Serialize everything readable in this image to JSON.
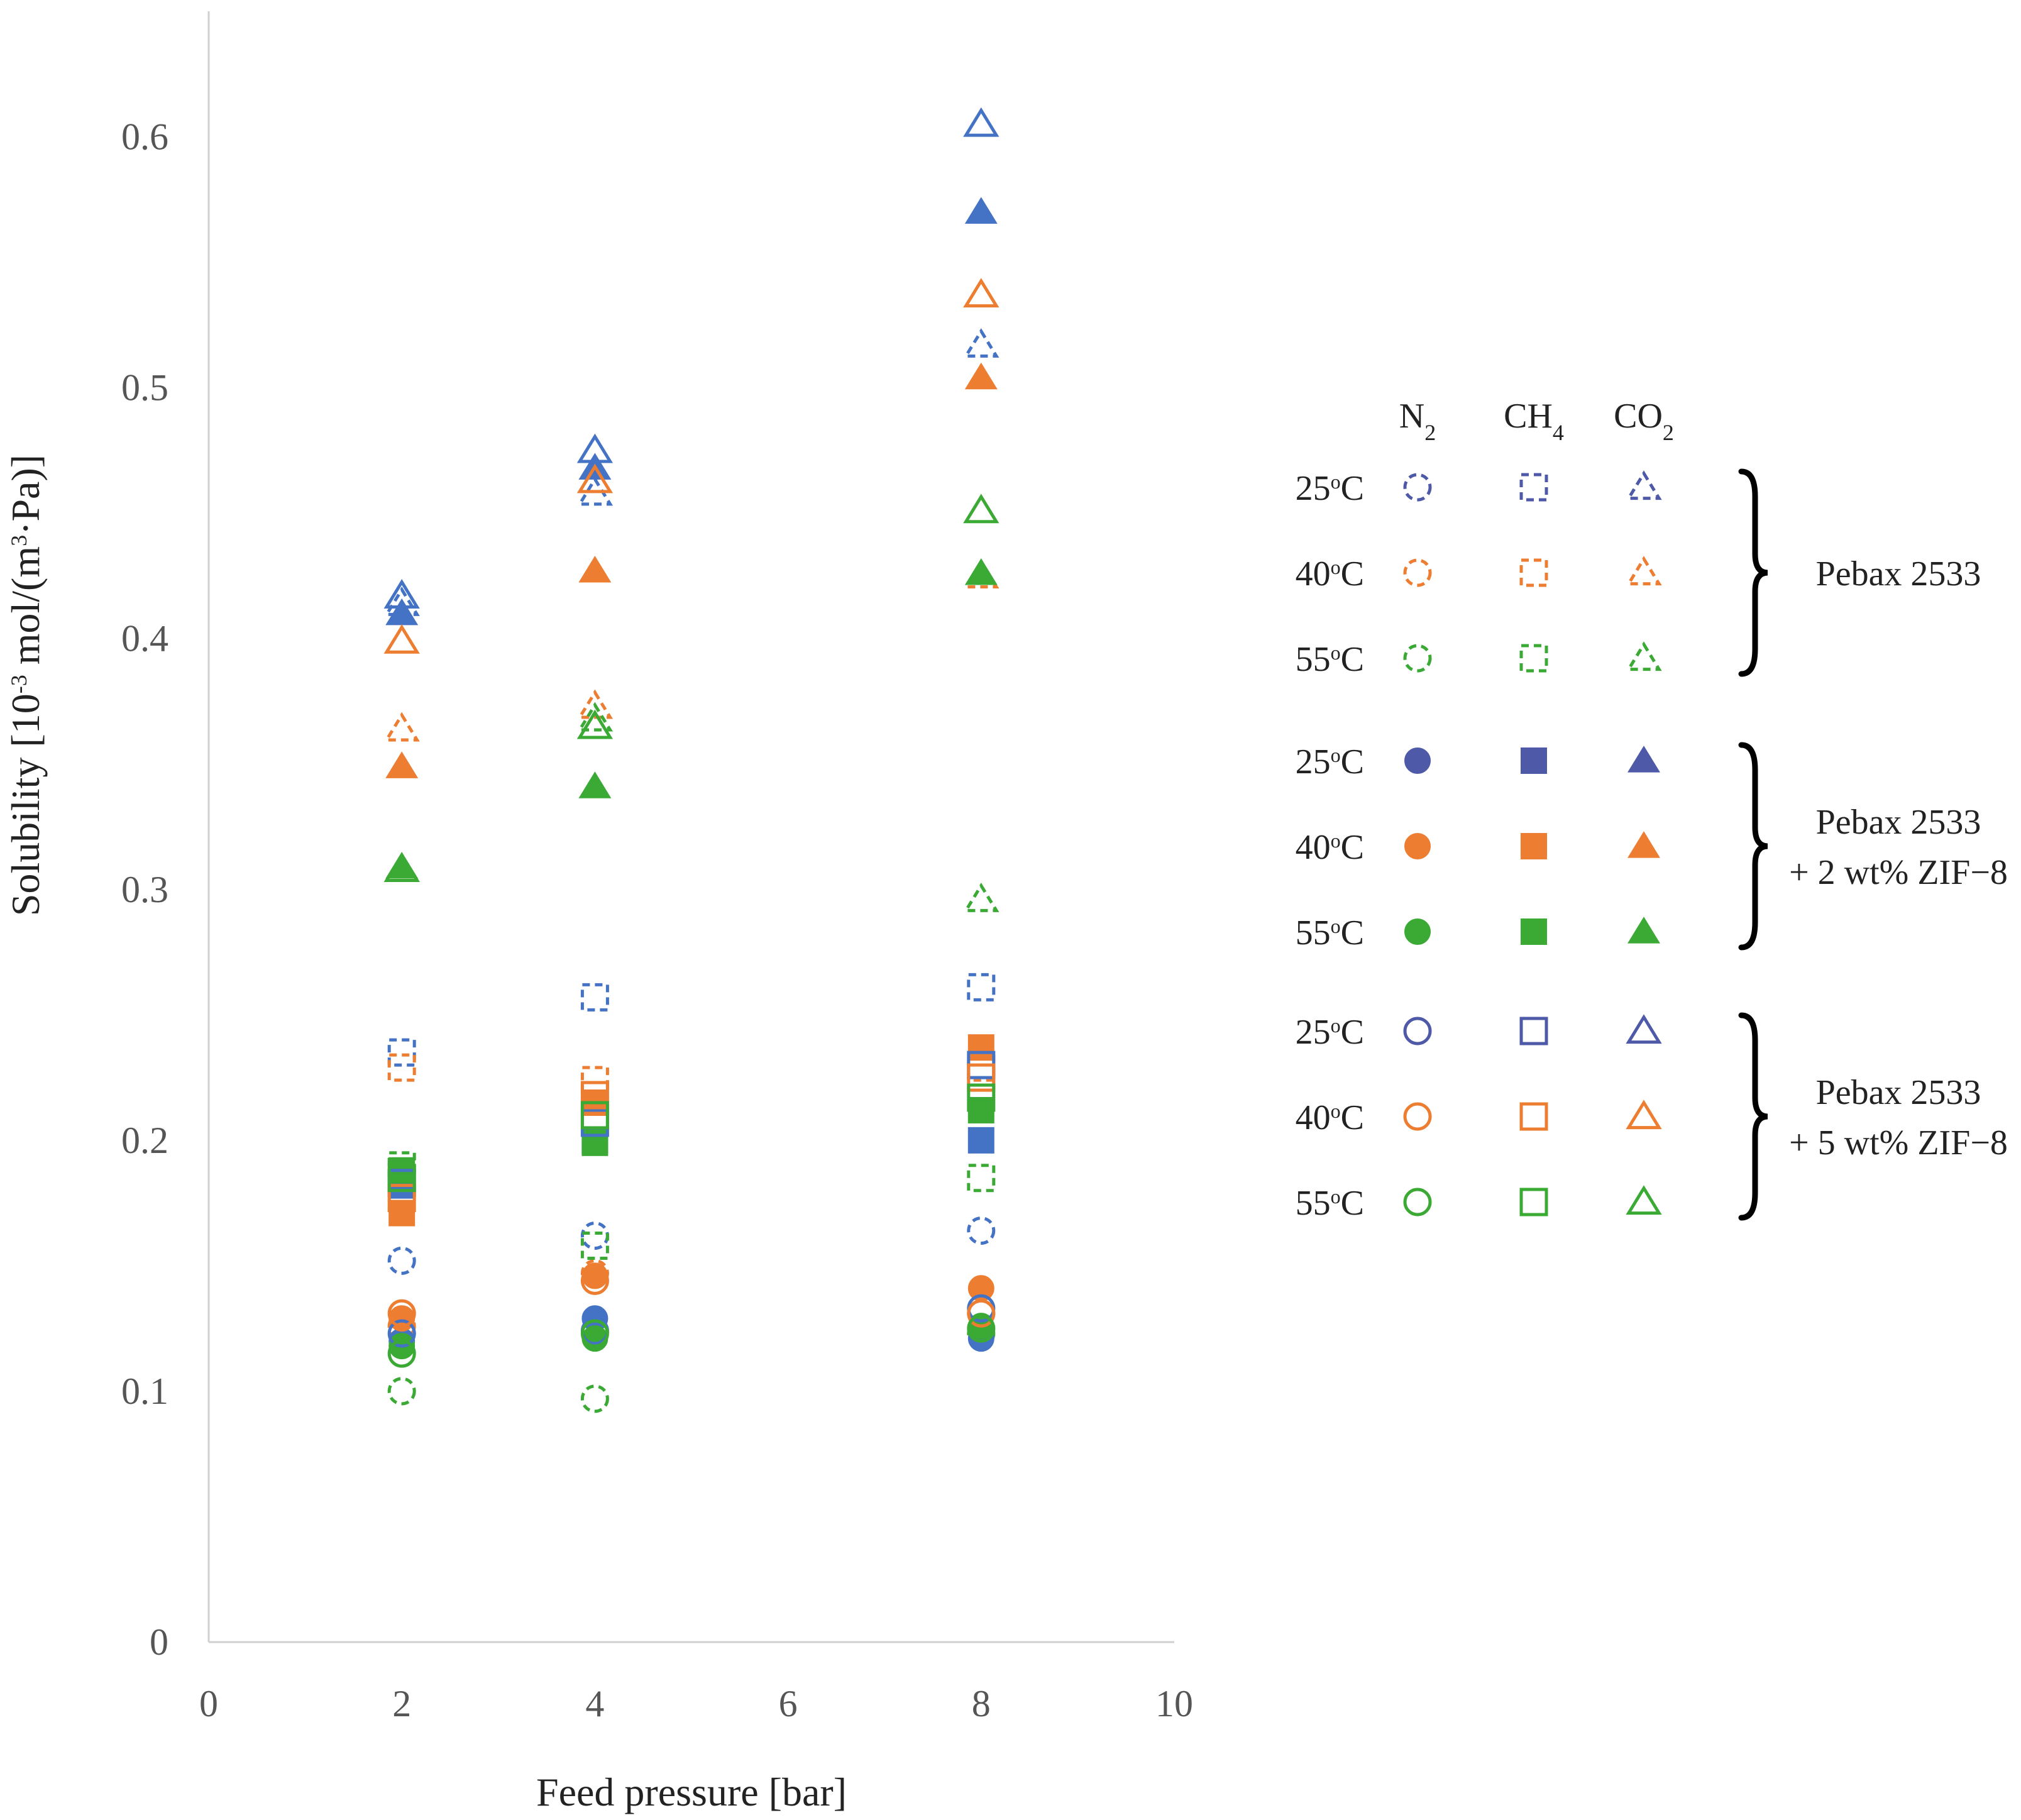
{
  "chart_data": {
    "type": "scatter",
    "xlabel": "Feed pressure [bar]",
    "ylabel_parts": [
      "Solubility [10",
      "-3",
      " mol/(m",
      "3",
      "·Pa)]"
    ],
    "xlim": [
      0,
      10
    ],
    "ylim": [
      0,
      0.65
    ],
    "xticks": [
      "0",
      "2",
      "4",
      "6",
      "8",
      "10"
    ],
    "xtick_values": [
      0,
      2,
      4,
      6,
      8,
      10
    ],
    "yticks": [
      "0",
      "0.1",
      "0.2",
      "0.3",
      "0.4",
      "0.5",
      "0.6"
    ],
    "ytick_values": [
      0,
      0.1,
      0.2,
      0.3,
      0.4,
      0.5,
      0.6
    ],
    "colors": {
      "25": "#4472C4",
      "40": "#ED7D31",
      "55": "#3BAA35",
      "legend25": "#4E5AA8",
      "axis": "#D0D0D0",
      "text": "#222222",
      "brace": "#000000"
    },
    "series": [
      {
        "name": "N2 25°C Pebax 2533",
        "gas": "N2",
        "temp": "25",
        "material": "Pebax 2533",
        "style": "dashed",
        "x": [
          2,
          4,
          8
        ],
        "y": [
          0.152,
          0.162,
          0.164
        ]
      },
      {
        "name": "N2 40°C Pebax 2533",
        "gas": "N2",
        "temp": "40",
        "material": "Pebax 2533",
        "style": "dashed",
        "x": [
          2,
          4,
          8
        ],
        "y": [
          0.126,
          0.147,
          0.131
        ]
      },
      {
        "name": "N2 55°C Pebax 2533",
        "gas": "N2",
        "temp": "55",
        "material": "Pebax 2533",
        "style": "dashed",
        "x": [
          2,
          4,
          8
        ],
        "y": [
          0.1,
          0.097,
          0.123
        ]
      },
      {
        "name": "CH4 25°C Pebax 2533",
        "gas": "CH4",
        "temp": "25",
        "material": "Pebax 2533",
        "style": "dashed",
        "x": [
          2,
          4,
          8
        ],
        "y": [
          0.235,
          0.257,
          0.261
        ]
      },
      {
        "name": "CH4 40°C Pebax 2533",
        "gas": "CH4",
        "temp": "40",
        "material": "Pebax 2533",
        "style": "dashed",
        "x": [
          2,
          4,
          8
        ],
        "y": [
          0.229,
          0.224,
          0.229
        ]
      },
      {
        "name": "CH4 55°C Pebax 2533",
        "gas": "CH4",
        "temp": "55",
        "material": "Pebax 2533",
        "style": "dashed",
        "x": [
          2,
          4,
          8
        ],
        "y": [
          0.19,
          0.158,
          0.185
        ]
      },
      {
        "name": "CO2 25°C Pebax 2533",
        "gas": "CO2",
        "temp": "25",
        "material": "Pebax 2533",
        "style": "dashed",
        "x": [
          2,
          4,
          8
        ],
        "y": [
          0.414,
          0.458,
          0.517
        ]
      },
      {
        "name": "CO2 40°C Pebax 2533",
        "gas": "CO2",
        "temp": "40",
        "material": "Pebax 2533",
        "style": "dashed",
        "x": [
          2,
          4,
          8
        ],
        "y": [
          0.364,
          0.373,
          0.425
        ]
      },
      {
        "name": "CO2 55°C Pebax 2533",
        "gas": "CO2",
        "temp": "55",
        "material": "Pebax 2533",
        "style": "dashed",
        "x": [
          2,
          4,
          8
        ],
        "y": [
          0.308,
          0.368,
          0.296
        ]
      },
      {
        "name": "N2 25°C Pebax 2533 + 2 wt% ZIF-8",
        "gas": "N2",
        "temp": "25",
        "material": "Pebax 2533 + 2 wt% ZIF-8",
        "style": "filled",
        "x": [
          2,
          4,
          8
        ],
        "y": [
          0.12,
          0.129,
          0.121
        ]
      },
      {
        "name": "N2 40°C Pebax 2533 + 2 wt% ZIF-8",
        "gas": "N2",
        "temp": "40",
        "material": "Pebax 2533 + 2 wt% ZIF-8",
        "style": "filled",
        "x": [
          2,
          4,
          8
        ],
        "y": [
          0.129,
          0.146,
          0.141
        ]
      },
      {
        "name": "N2 55°C Pebax 2533 + 2 wt% ZIF-8",
        "gas": "N2",
        "temp": "55",
        "material": "Pebax 2533 + 2 wt% ZIF-8",
        "style": "filled",
        "x": [
          2,
          4,
          8
        ],
        "y": [
          0.118,
          0.121,
          0.126
        ]
      },
      {
        "name": "CH4 25°C Pebax 2533 + 2 wt% ZIF-8",
        "gas": "CH4",
        "temp": "25",
        "material": "Pebax 2533 + 2 wt% ZIF-8",
        "style": "filled",
        "x": [
          2,
          4,
          8
        ],
        "y": [
          0.182,
          0.2,
          0.2
        ]
      },
      {
        "name": "CH4 40°C Pebax 2533 + 2 wt% ZIF-8",
        "gas": "CH4",
        "temp": "40",
        "material": "Pebax 2533 + 2 wt% ZIF-8",
        "style": "filled",
        "x": [
          2,
          4,
          8
        ],
        "y": [
          0.171,
          0.215,
          0.237
        ]
      },
      {
        "name": "CH4 55°C Pebax 2533 + 2 wt% ZIF-8",
        "gas": "CH4",
        "temp": "55",
        "material": "Pebax 2533 + 2 wt% ZIF-8",
        "style": "filled",
        "x": [
          2,
          4,
          8
        ],
        "y": [
          0.188,
          0.199,
          0.212
        ]
      },
      {
        "name": "CO2 25°C Pebax 2533 + 2 wt% ZIF-8",
        "gas": "CO2",
        "temp": "25",
        "material": "Pebax 2533 + 2 wt% ZIF-8",
        "style": "filled",
        "x": [
          2,
          4,
          8
        ],
        "y": [
          0.41,
          0.468,
          0.57
        ]
      },
      {
        "name": "CO2 40°C Pebax 2533 + 2 wt% ZIF-8",
        "gas": "CO2",
        "temp": "40",
        "material": "Pebax 2533 + 2 wt% ZIF-8",
        "style": "filled",
        "x": [
          2,
          4,
          8
        ],
        "y": [
          0.349,
          0.427,
          0.504
        ]
      },
      {
        "name": "CO2 55°C Pebax 2533 + 2 wt% ZIF-8",
        "gas": "CO2",
        "temp": "55",
        "material": "Pebax 2533 + 2 wt% ZIF-8",
        "style": "filled",
        "x": [
          2,
          4,
          8
        ],
        "y": [
          0.309,
          0.341,
          0.426
        ]
      },
      {
        "name": "N2 25°C Pebax 2533 + 5 wt% ZIF-8",
        "gas": "N2",
        "temp": "25",
        "material": "Pebax 2533 + 5 wt% ZIF-8",
        "style": "hollow",
        "x": [
          2,
          4,
          8
        ],
        "y": [
          0.123,
          0.124,
          0.133
        ]
      },
      {
        "name": "N2 40°C Pebax 2533 + 5 wt% ZIF-8",
        "gas": "N2",
        "temp": "40",
        "material": "Pebax 2533 + 5 wt% ZIF-8",
        "style": "hollow",
        "x": [
          2,
          4,
          8
        ],
        "y": [
          0.131,
          0.144,
          0.131
        ]
      },
      {
        "name": "N2 55°C Pebax 2533 + 5 wt% ZIF-8",
        "gas": "N2",
        "temp": "55",
        "material": "Pebax 2533 + 5 wt% ZIF-8",
        "style": "hollow",
        "x": [
          2,
          4,
          8
        ],
        "y": [
          0.115,
          0.123,
          0.125
        ]
      },
      {
        "name": "CH4 25°C Pebax 2533 + 5 wt% ZIF-8",
        "gas": "CH4",
        "temp": "25",
        "material": "Pebax 2533 + 5 wt% ZIF-8",
        "style": "hollow",
        "x": [
          2,
          4,
          8
        ],
        "y": [
          0.183,
          0.207,
          0.23
        ]
      },
      {
        "name": "CH4 40°C Pebax 2533 + 5 wt% ZIF-8",
        "gas": "CH4",
        "temp": "40",
        "material": "Pebax 2533 + 5 wt% ZIF-8",
        "style": "hollow",
        "x": [
          2,
          4,
          8
        ],
        "y": [
          0.177,
          0.218,
          0.225
        ]
      },
      {
        "name": "CH4 55°C Pebax 2533 + 5 wt% ZIF-8",
        "gas": "CH4",
        "temp": "55",
        "material": "Pebax 2533 + 5 wt% ZIF-8",
        "style": "hollow",
        "x": [
          2,
          4,
          8
        ],
        "y": [
          0.185,
          0.21,
          0.217
        ]
      },
      {
        "name": "CO2 25°C Pebax 2533 + 5 wt% ZIF-8",
        "gas": "CO2",
        "temp": "25",
        "material": "Pebax 2533 + 5 wt% ZIF-8",
        "style": "hollow",
        "x": [
          2,
          4,
          8
        ],
        "y": [
          0.417,
          0.475,
          0.605
        ]
      },
      {
        "name": "CO2 40°C Pebax 2533 + 5 wt% ZIF-8",
        "gas": "CO2",
        "temp": "40",
        "material": "Pebax 2533 + 5 wt% ZIF-8",
        "style": "hollow",
        "x": [
          2,
          4,
          8
        ],
        "y": [
          0.399,
          0.463,
          0.537
        ]
      },
      {
        "name": "CO2 55°C Pebax 2533 + 5 wt% ZIF-8",
        "gas": "CO2",
        "temp": "55",
        "material": "Pebax 2533 + 5 wt% ZIF-8",
        "style": "hollow",
        "x": [
          2,
          4,
          8
        ],
        "y": [
          0.308,
          0.365,
          0.451
        ]
      }
    ],
    "legend": {
      "placement": "right",
      "column_headers": [
        {
          "base": "N",
          "sub": "2"
        },
        {
          "base": "CH",
          "sub": "4"
        },
        {
          "base": "CO",
          "sub": "2"
        }
      ],
      "gas_order": [
        "N2",
        "CH4",
        "CO2"
      ],
      "groups": [
        {
          "style": "dashed",
          "label_lines": [
            "Pebax 2533"
          ],
          "rows": [
            {
              "temp": "25",
              "label": "25",
              "sup": "o",
              "unit": "C"
            },
            {
              "temp": "40",
              "label": "40",
              "sup": "o",
              "unit": "C"
            },
            {
              "temp": "55",
              "label": "55",
              "sup": "o",
              "unit": "C"
            }
          ]
        },
        {
          "style": "filled",
          "label_lines": [
            "Pebax 2533",
            "+ 2 wt% ZIF−8"
          ],
          "rows": [
            {
              "temp": "25",
              "label": "25",
              "sup": "o",
              "unit": "C"
            },
            {
              "temp": "40",
              "label": "40",
              "sup": "o",
              "unit": "C"
            },
            {
              "temp": "55",
              "label": "55",
              "sup": "o",
              "unit": "C"
            }
          ]
        },
        {
          "style": "hollow",
          "label_lines": [
            "Pebax 2533",
            "+ 5 wt% ZIF−8"
          ],
          "rows": [
            {
              "temp": "25",
              "label": "25",
              "sup": "o",
              "unit": "C"
            },
            {
              "temp": "40",
              "label": "40",
              "sup": "o",
              "unit": "C"
            },
            {
              "temp": "55",
              "label": "55",
              "sup": "o",
              "unit": "C"
            }
          ]
        }
      ]
    }
  }
}
